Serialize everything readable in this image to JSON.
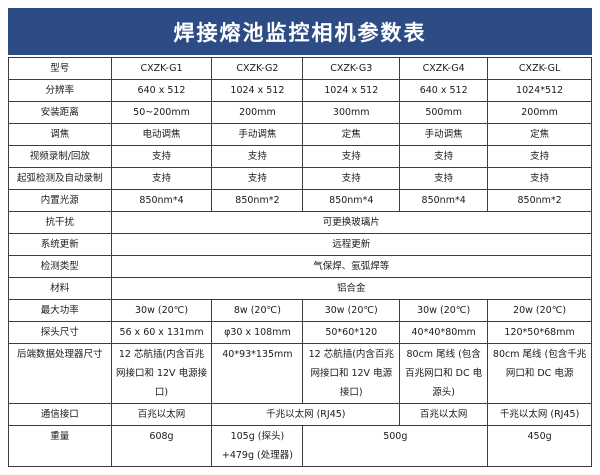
{
  "title": "焊接熔池监控相机参数表",
  "theme": {
    "header_bg": "#2d4c85",
    "header_text": "#ffffff",
    "border": "#3d3d3d",
    "cell_text": "#1a1a1a"
  },
  "table": {
    "rows": [
      {
        "label": "型号",
        "cells": [
          {
            "text": "CXZK-G1"
          },
          {
            "text": "CXZK-G2"
          },
          {
            "text": "CXZK-G3"
          },
          {
            "text": "CXZK-G4"
          },
          {
            "text": "CXZK-GL"
          }
        ]
      },
      {
        "label": "分辨率",
        "cells": [
          {
            "text": "640 x 512"
          },
          {
            "text": "1024 x 512"
          },
          {
            "text": "1024 x 512"
          },
          {
            "text": "640 x 512"
          },
          {
            "text": "1024*512"
          }
        ]
      },
      {
        "label": "安装距离",
        "cells": [
          {
            "text": "50~200mm"
          },
          {
            "text": "200mm"
          },
          {
            "text": "300mm"
          },
          {
            "text": "500mm"
          },
          {
            "text": "200mm"
          }
        ]
      },
      {
        "label": "调焦",
        "cells": [
          {
            "text": "电动调焦"
          },
          {
            "text": "手动调焦"
          },
          {
            "text": "定焦"
          },
          {
            "text": "手动调焦"
          },
          {
            "text": "定焦"
          }
        ]
      },
      {
        "label": "视频录制/回放",
        "cells": [
          {
            "text": "支持"
          },
          {
            "text": "支持"
          },
          {
            "text": "支持"
          },
          {
            "text": "支持"
          },
          {
            "text": "支持"
          }
        ]
      },
      {
        "label": "起弧检测及自动录制",
        "cells": [
          {
            "text": "支持"
          },
          {
            "text": "支持"
          },
          {
            "text": "支持"
          },
          {
            "text": "支持"
          },
          {
            "text": "支持"
          }
        ]
      },
      {
        "label": "内置光源",
        "cells": [
          {
            "text": "850nm*4"
          },
          {
            "text": "850nm*2"
          },
          {
            "text": "850nm*4"
          },
          {
            "text": "850nm*4"
          },
          {
            "text": "850nm*2"
          }
        ]
      },
      {
        "label": "抗干扰",
        "cells": [
          {
            "text": "可更换玻璃片",
            "span": 5
          }
        ]
      },
      {
        "label": "系统更新",
        "cells": [
          {
            "text": "远程更新",
            "span": 5
          }
        ]
      },
      {
        "label": "检测类型",
        "cells": [
          {
            "text": "气保焊、氩弧焊等",
            "span": 5
          }
        ]
      },
      {
        "label": "材料",
        "cells": [
          {
            "text": "铝合金",
            "span": 5
          }
        ]
      },
      {
        "label": "最大功率",
        "cells": [
          {
            "text": "30w (20℃)"
          },
          {
            "text": "8w (20℃)"
          },
          {
            "text": "30w (20℃)"
          },
          {
            "text": "30w (20℃)"
          },
          {
            "text": "20w (20℃)"
          }
        ]
      },
      {
        "label": "探头尺寸",
        "cells": [
          {
            "text": "56 x 60 x 131mm"
          },
          {
            "text": "φ30 x 108mm"
          },
          {
            "text": "50*60*120"
          },
          {
            "text": "40*40*80mm"
          },
          {
            "text": "120*50*68mm"
          }
        ]
      },
      {
        "label": "后端数据处理器尺寸",
        "cells": [
          {
            "text": "12 芯航插(内含百兆网接口和 12V 电源接口)"
          },
          {
            "text": "40*93*135mm"
          },
          {
            "text": "12 芯航插(内含百兆网接口和 12V 电源接口)"
          },
          {
            "text": "80cm 尾线 (包含百兆网口和 DC 电源头)"
          },
          {
            "text": "80cm 尾线 (包含千兆网口和 DC 电源"
          }
        ]
      },
      {
        "label": "通信接口",
        "cells": [
          {
            "text": "百兆以太网"
          },
          {
            "text": "千兆以太网 (RJ45)",
            "span": 2
          },
          {
            "text": "百兆以太网"
          },
          {
            "text": "千兆以太网 (RJ45)"
          }
        ]
      },
      {
        "label": "重量",
        "cells": [
          {
            "text": "608g"
          },
          {
            "text": "105g (探头)\n+479g (处理器)"
          },
          {
            "text": "500g",
            "span": 2
          },
          {
            "text": "450g"
          }
        ]
      }
    ]
  }
}
